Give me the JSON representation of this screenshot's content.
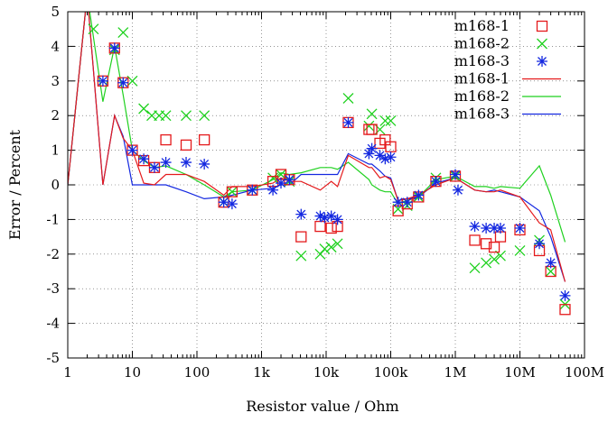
{
  "chart_data": {
    "type": "scatter",
    "xscale": "log",
    "xlim": [
      1,
      100000000
    ],
    "ylim": [
      -5,
      5
    ],
    "grid": true,
    "legend_position": "top-right",
    "xlabel": "Resistor value / Ohm",
    "ylabel": "Error / Percent",
    "xticks": [
      {
        "value": 1,
        "label": "1"
      },
      {
        "value": 10,
        "label": "10"
      },
      {
        "value": 100,
        "label": "100"
      },
      {
        "value": 1000,
        "label": "1k"
      },
      {
        "value": 10000,
        "label": "10k"
      },
      {
        "value": 100000,
        "label": "100k"
      },
      {
        "value": 1000000,
        "label": "1M"
      },
      {
        "value": 10000000,
        "label": "10M"
      },
      {
        "value": 100000000,
        "label": "100M"
      }
    ],
    "yticks": [
      {
        "value": 5,
        "label": "5"
      },
      {
        "value": 4,
        "label": "4"
      },
      {
        "value": 3,
        "label": "3"
      },
      {
        "value": 2,
        "label": "2"
      },
      {
        "value": 1,
        "label": "1"
      },
      {
        "value": 0,
        "label": "0"
      },
      {
        "value": -1,
        "label": "-1"
      },
      {
        "value": -2,
        "label": "-2"
      },
      {
        "value": -3,
        "label": "-3"
      },
      {
        "value": -4,
        "label": "-4"
      },
      {
        "value": -5,
        "label": "-5"
      }
    ],
    "series": [
      {
        "name": "m168-1",
        "kind": "points",
        "marker": "square",
        "color": "#e41a1c",
        "x": [
          3.5,
          5.3,
          7.2,
          10,
          15,
          22,
          33,
          68,
          130,
          260,
          350,
          720,
          1500,
          2000,
          2700,
          4100,
          8100,
          12000,
          15000,
          22000,
          46000,
          51000,
          68000,
          82000,
          100000,
          130000,
          180000,
          270000,
          500000,
          1000000,
          2000000,
          3000000,
          4000000,
          5000000,
          10000000,
          20000000,
          30000000,
          50000000
        ],
        "y": [
          3.0,
          3.95,
          2.95,
          1.0,
          0.7,
          0.5,
          1.3,
          1.15,
          1.3,
          -0.5,
          -0.2,
          -0.15,
          0.1,
          0.3,
          0.15,
          -1.5,
          -1.2,
          -1.25,
          -1.2,
          1.8,
          1.6,
          1.6,
          1.2,
          1.3,
          1.1,
          -0.75,
          -0.55,
          -0.35,
          0.1,
          0.25,
          -1.6,
          -1.7,
          -1.8,
          -1.5,
          -1.3,
          -1.9,
          -2.5,
          -3.6
        ]
      },
      {
        "name": "m168-2",
        "kind": "points",
        "marker": "cross",
        "color": "#1fd11f",
        "x": [
          2.5,
          5.3,
          7.2,
          10,
          15,
          20,
          26,
          33,
          68,
          130,
          260,
          350,
          720,
          1500,
          2000,
          2700,
          4100,
          8100,
          9500,
          12000,
          15000,
          22000,
          46000,
          51000,
          68000,
          82000,
          100000,
          130000,
          180000,
          270000,
          500000,
          1000000,
          2000000,
          3000000,
          4000000,
          5000000,
          10000000,
          20000000,
          30000000,
          50000000
        ],
        "y": [
          4.5,
          3.9,
          4.4,
          3.0,
          2.2,
          2.0,
          2.0,
          2.0,
          2.0,
          2.0,
          -0.5,
          -0.2,
          -0.15,
          0.2,
          0.3,
          0.1,
          -2.05,
          -2.0,
          -1.85,
          -1.8,
          -1.7,
          2.5,
          1.7,
          2.05,
          1.6,
          1.85,
          1.85,
          -0.7,
          -0.6,
          -0.35,
          0.2,
          0.25,
          -2.4,
          -2.25,
          -2.15,
          -2.05,
          -1.9,
          -1.6,
          -2.5,
          -3.45
        ]
      },
      {
        "name": "m168-3",
        "kind": "points",
        "marker": "star",
        "color": "#1428e0",
        "x": [
          3.5,
          5.3,
          7.2,
          10,
          15,
          22,
          33,
          68,
          130,
          260,
          350,
          720,
          1500,
          2000,
          2700,
          4100,
          8100,
          9500,
          12000,
          15000,
          22000,
          46000,
          51000,
          68000,
          82000,
          100000,
          130000,
          180000,
          270000,
          500000,
          1000000,
          1100000,
          2000000,
          3000000,
          4000000,
          5000000,
          10000000,
          20000000,
          30000000,
          50000000
        ],
        "y": [
          3.0,
          3.95,
          2.95,
          1.0,
          0.75,
          0.5,
          0.65,
          0.65,
          0.6,
          -0.5,
          -0.55,
          -0.15,
          -0.15,
          0.05,
          0.15,
          -0.85,
          -0.9,
          -0.95,
          -0.9,
          -1.0,
          1.8,
          0.9,
          1.05,
          0.85,
          0.75,
          0.8,
          -0.5,
          -0.5,
          -0.3,
          0.1,
          0.3,
          -0.15,
          -1.2,
          -1.25,
          -1.25,
          -1.25,
          -1.25,
          -1.7,
          -2.25,
          -3.2
        ]
      },
      {
        "name": "m168-1",
        "kind": "line",
        "color": "#e41a1c",
        "x": [
          1,
          2,
          3.5,
          5.3,
          7.2,
          10,
          15,
          22,
          33,
          68,
          130,
          260,
          350,
          720,
          1500,
          2000,
          2700,
          4100,
          8100,
          12000,
          15000,
          22000,
          46000,
          51000,
          68000,
          82000,
          100000,
          130000,
          180000,
          270000,
          500000,
          1000000,
          2000000,
          3000000,
          4000000,
          5000000,
          10000000,
          20000000,
          30000000,
          50000000
        ],
        "y": [
          0,
          5.5,
          0,
          2.0,
          1.35,
          1.0,
          0.05,
          0.0,
          0.3,
          0.3,
          0.1,
          -0.3,
          -0.05,
          -0.05,
          0.05,
          0.2,
          0.1,
          0.1,
          -0.15,
          0.1,
          -0.05,
          0.85,
          0.5,
          0.5,
          0.2,
          0.25,
          0.15,
          -0.45,
          -0.4,
          -0.3,
          0.0,
          0.2,
          -0.15,
          -0.2,
          -0.2,
          -0.15,
          -0.35,
          -1.1,
          -1.3,
          -2.8
        ]
      },
      {
        "name": "m168-2",
        "kind": "line",
        "color": "#1fd11f",
        "x": [
          1,
          2,
          3.5,
          5.3,
          7.2,
          10,
          15,
          22,
          33,
          68,
          130,
          260,
          350,
          720,
          1500,
          2000,
          2700,
          4100,
          8100,
          12000,
          15000,
          22000,
          46000,
          51000,
          68000,
          82000,
          100000,
          130000,
          180000,
          270000,
          500000,
          1000000,
          2000000,
          3000000,
          4000000,
          5000000,
          10000000,
          20000000,
          30000000,
          50000000
        ],
        "y": [
          0,
          5.5,
          2.4,
          4.0,
          2.6,
          1.0,
          0.7,
          0.5,
          0.55,
          0.3,
          0.0,
          -0.35,
          -0.2,
          -0.15,
          0.15,
          0.35,
          0.3,
          0.35,
          0.5,
          0.5,
          0.45,
          0.65,
          0.15,
          0.0,
          -0.15,
          -0.2,
          -0.2,
          -0.55,
          -0.45,
          -0.35,
          0.15,
          0.25,
          -0.05,
          -0.05,
          -0.1,
          -0.05,
          -0.1,
          0.55,
          -0.3,
          -1.65
        ]
      },
      {
        "name": "m168-3",
        "kind": "line",
        "color": "#1428e0",
        "x": [
          1,
          2,
          3.5,
          5.3,
          7.2,
          10,
          15,
          22,
          33,
          68,
          130,
          260,
          350,
          720,
          1500,
          2000,
          2700,
          4100,
          8100,
          12000,
          15000,
          22000,
          46000,
          51000,
          68000,
          82000,
          100000,
          130000,
          180000,
          270000,
          500000,
          1000000,
          2000000,
          3000000,
          4000000,
          5000000,
          10000000,
          20000000,
          30000000,
          50000000
        ],
        "y": [
          0,
          5.5,
          0,
          2.0,
          1.4,
          0.0,
          0.0,
          0.0,
          0.0,
          -0.2,
          -0.4,
          -0.35,
          -0.3,
          -0.15,
          -0.1,
          0.0,
          0.0,
          0.3,
          0.3,
          0.3,
          0.3,
          0.9,
          0.6,
          0.6,
          0.4,
          0.25,
          0.2,
          -0.45,
          -0.4,
          -0.35,
          0.05,
          0.2,
          -0.15,
          -0.2,
          -0.15,
          -0.2,
          -0.35,
          -0.75,
          -1.5,
          -2.8
        ]
      }
    ]
  }
}
